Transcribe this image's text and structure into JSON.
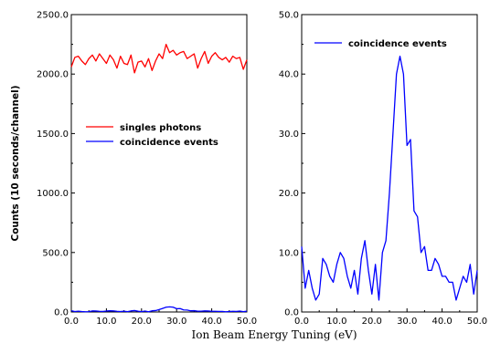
{
  "figure": {
    "xlabel": "Ion Beam Energy Tuning (eV)",
    "ylabel": "Counts (10 seconds/channel)"
  },
  "chart_data": [
    {
      "type": "line",
      "xlabel": "Ion Beam Energy Tuning (eV)",
      "ylabel": "Counts (10 seconds/channel)",
      "xlim": [
        0,
        50
      ],
      "ylim": [
        0,
        2500
      ],
      "xticks": [
        "0.0",
        "10.0",
        "20.0",
        "30.0",
        "40.0",
        "50.0"
      ],
      "yticks": [
        "0.0",
        "500.0",
        "1000.0",
        "1500.0",
        "2000.0",
        "2500.0"
      ],
      "grid": false,
      "legend": "center-left",
      "series": [
        {
          "name": "singles photons",
          "color": "#ff0000",
          "x": [
            0,
            1,
            2,
            3,
            4,
            5,
            6,
            7,
            8,
            9,
            10,
            11,
            12,
            13,
            14,
            15,
            16,
            17,
            18,
            19,
            20,
            21,
            22,
            23,
            24,
            25,
            26,
            27,
            28,
            29,
            30,
            31,
            32,
            33,
            34,
            35,
            36,
            37,
            38,
            39,
            40,
            41,
            42,
            43,
            44,
            45,
            46,
            47,
            48,
            49,
            50
          ],
          "values": [
            2060,
            2140,
            2150,
            2110,
            2080,
            2130,
            2160,
            2110,
            2170,
            2130,
            2090,
            2160,
            2120,
            2050,
            2150,
            2090,
            2080,
            2160,
            2010,
            2100,
            2110,
            2060,
            2130,
            2030,
            2110,
            2170,
            2130,
            2250,
            2180,
            2200,
            2160,
            2180,
            2190,
            2130,
            2150,
            2170,
            2050,
            2130,
            2190,
            2090,
            2150,
            2180,
            2140,
            2120,
            2140,
            2100,
            2150,
            2130,
            2140,
            2040,
            2120
          ]
        },
        {
          "name": "coincidence events",
          "color": "#0000ff",
          "x": [
            0,
            1,
            2,
            3,
            4,
            5,
            6,
            7,
            8,
            9,
            10,
            11,
            12,
            13,
            14,
            15,
            16,
            17,
            18,
            19,
            20,
            21,
            22,
            23,
            24,
            25,
            26,
            27,
            28,
            29,
            30,
            31,
            32,
            33,
            34,
            35,
            36,
            37,
            38,
            39,
            40,
            41,
            42,
            43,
            44,
            45,
            46,
            47,
            48,
            49,
            50
          ],
          "values": [
            11,
            4,
            7,
            4,
            2,
            3,
            9,
            8,
            6,
            5,
            8,
            10,
            9,
            6,
            4,
            7,
            3,
            9,
            12,
            7,
            3,
            8,
            2,
            10,
            12,
            20,
            30,
            40,
            43,
            40,
            28,
            29,
            17,
            16,
            10,
            11,
            7,
            7,
            9,
            8,
            6,
            6,
            5,
            5,
            2,
            4,
            6,
            5,
            8,
            3,
            7
          ]
        }
      ]
    },
    {
      "type": "line",
      "xlim": [
        0,
        50
      ],
      "ylim": [
        0,
        50
      ],
      "xticks": [
        "0.0",
        "10.0",
        "20.0",
        "30.0",
        "40.0",
        "50.0"
      ],
      "yticks": [
        "0.0",
        "10.0",
        "20.0",
        "30.0",
        "40.0",
        "50.0"
      ],
      "grid": false,
      "legend": "top-left",
      "series": [
        {
          "name": "coincidence events",
          "color": "#0000ff",
          "x": [
            0,
            1,
            2,
            3,
            4,
            5,
            6,
            7,
            8,
            9,
            10,
            11,
            12,
            13,
            14,
            15,
            16,
            17,
            18,
            19,
            20,
            21,
            22,
            23,
            24,
            25,
            26,
            27,
            28,
            29,
            30,
            31,
            32,
            33,
            34,
            35,
            36,
            37,
            38,
            39,
            40,
            41,
            42,
            43,
            44,
            45,
            46,
            47,
            48,
            49,
            50
          ],
          "values": [
            11,
            4,
            7,
            4,
            2,
            3,
            9,
            8,
            6,
            5,
            8,
            10,
            9,
            6,
            4,
            7,
            3,
            9,
            12,
            7,
            3,
            8,
            2,
            10,
            12,
            20,
            30,
            40,
            43,
            40,
            28,
            29,
            17,
            16,
            10,
            11,
            7,
            7,
            9,
            8,
            6,
            6,
            5,
            5,
            2,
            4,
            6,
            5,
            8,
            3,
            7
          ]
        }
      ]
    }
  ]
}
